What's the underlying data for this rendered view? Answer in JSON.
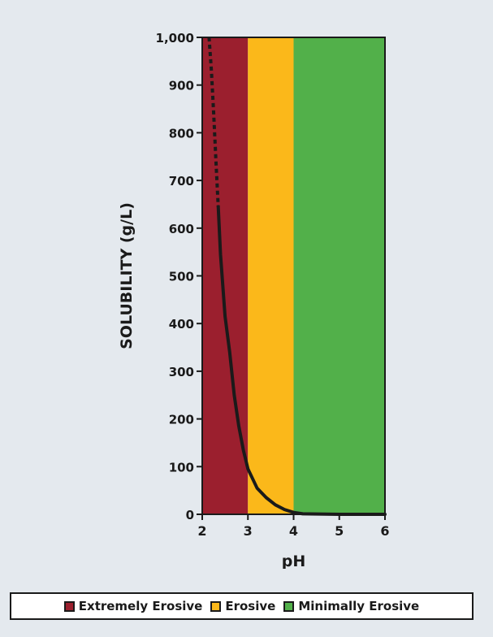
{
  "chart_data": {
    "type": "line",
    "xlabel": "pH",
    "ylabel": "SOLUBILITY (g/L)",
    "xlim": [
      2,
      6
    ],
    "ylim": [
      0,
      1000
    ],
    "xticks": [
      2,
      3,
      4,
      5,
      6
    ],
    "xtick_labels": [
      "2",
      "3",
      "4",
      "5",
      "6"
    ],
    "yticks": [
      0,
      100,
      200,
      300,
      400,
      500,
      600,
      700,
      800,
      900,
      1000
    ],
    "ytick_labels": [
      "0",
      "100",
      "200",
      "300",
      "400",
      "500",
      "600",
      "700",
      "800",
      "900",
      "1,000"
    ],
    "grid": false,
    "bands": [
      {
        "from": 2,
        "to": 3,
        "label": "Extremely Erosive",
        "color": "#9b1f2e"
      },
      {
        "from": 3,
        "to": 4,
        "label": "Erosive",
        "color": "#fbb81a"
      },
      {
        "from": 4,
        "to": 6,
        "label": "Minimally Erosive",
        "color": "#52b04a"
      }
    ],
    "series": [
      {
        "style": "solid",
        "color": "#1a1a1a",
        "x": [
          2.35,
          2.4,
          2.5,
          2.6,
          2.7,
          2.8,
          2.9,
          3.0,
          3.2,
          3.4,
          3.6,
          3.8,
          4.0,
          4.2,
          5.0,
          6.0
        ],
        "y": [
          645,
          545,
          415,
          340,
          250,
          185,
          135,
          95,
          55,
          35,
          20,
          10,
          4,
          1,
          0,
          0
        ]
      },
      {
        "style": "dotted",
        "color": "#1a1a1a",
        "x": [
          2.15,
          2.2,
          2.25,
          2.3,
          2.35
        ],
        "y": [
          1000,
          930,
          840,
          740,
          645
        ]
      }
    ]
  },
  "legend": {
    "position": "bottom",
    "items": [
      {
        "label": "Extremely Erosive",
        "color": "#9b1f2e"
      },
      {
        "label": "Erosive",
        "color": "#fbb81a"
      },
      {
        "label": "Minimally Erosive",
        "color": "#52b04a"
      }
    ]
  }
}
